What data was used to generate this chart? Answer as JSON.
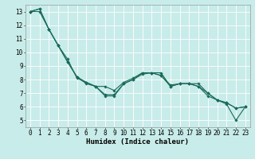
{
  "title": "",
  "xlabel": "Humidex (Indice chaleur)",
  "ylabel": "",
  "background_color": "#c8ece9",
  "grid_color": "#ffffff",
  "line_color": "#1a6b5a",
  "xlim": [
    -0.5,
    23.5
  ],
  "ylim": [
    4.5,
    13.5
  ],
  "xticks": [
    0,
    1,
    2,
    3,
    4,
    5,
    6,
    7,
    8,
    9,
    10,
    11,
    12,
    13,
    14,
    15,
    16,
    17,
    18,
    19,
    20,
    21,
    22,
    23
  ],
  "yticks": [
    5,
    6,
    7,
    8,
    9,
    10,
    11,
    12,
    13
  ],
  "series1_x": [
    0,
    1,
    2,
    3,
    4,
    5,
    6,
    7,
    8,
    9,
    10,
    11,
    12,
    13,
    14,
    15,
    16,
    17,
    18,
    19,
    20,
    21,
    22,
    23
  ],
  "series1_y": [
    13.0,
    13.2,
    11.7,
    10.5,
    9.3,
    8.2,
    7.7,
    7.5,
    6.8,
    6.8,
    7.7,
    8.0,
    8.5,
    8.5,
    8.3,
    7.5,
    7.7,
    7.7,
    7.5,
    7.0,
    6.5,
    6.3,
    5.9,
    6.0
  ],
  "series2_x": [
    0,
    1,
    2,
    3,
    4,
    5,
    6,
    7,
    8,
    9,
    10,
    11,
    12,
    13,
    14,
    15,
    16,
    17,
    18,
    19,
    20,
    21,
    22,
    23
  ],
  "series2_y": [
    13.0,
    13.0,
    11.7,
    10.5,
    9.5,
    8.1,
    7.8,
    7.5,
    6.9,
    6.9,
    7.7,
    8.0,
    8.4,
    8.5,
    8.5,
    7.5,
    7.7,
    7.7,
    7.7,
    7.0,
    6.5,
    6.2,
    5.0,
    6.0
  ],
  "series3_x": [
    0,
    1,
    2,
    3,
    4,
    5,
    6,
    7,
    8,
    9,
    10,
    11,
    12,
    13,
    14,
    15,
    16,
    17,
    18,
    19,
    20,
    21,
    22,
    23
  ],
  "series3_y": [
    13.0,
    13.2,
    11.7,
    10.5,
    9.3,
    8.2,
    7.8,
    7.5,
    7.5,
    7.2,
    7.8,
    8.1,
    8.5,
    8.5,
    8.3,
    7.6,
    7.7,
    7.7,
    7.5,
    6.8,
    6.5,
    6.3,
    5.9,
    6.0
  ],
  "line_width": 0.8,
  "marker": "D",
  "marker_size": 1.8,
  "xlabel_fontsize": 6.5,
  "tick_fontsize": 5.5
}
